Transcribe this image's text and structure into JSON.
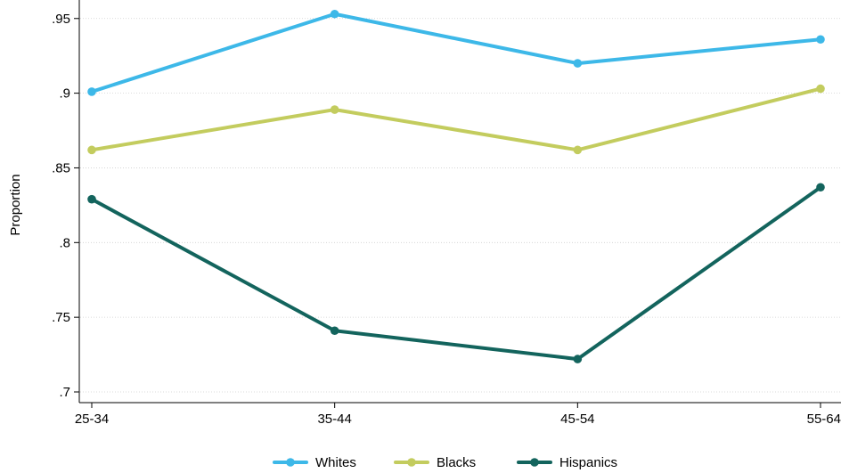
{
  "chart_data": {
    "type": "line",
    "categories": [
      "25-34",
      "35-44",
      "45-54",
      "55-64"
    ],
    "ylabel": "Proportion",
    "ylim": [
      0.7,
      0.96
    ],
    "yticks": [
      0.7,
      0.75,
      0.8,
      0.85,
      0.9,
      0.95
    ],
    "ytick_labels": [
      ".7",
      ".75",
      ".8",
      ".85",
      ".9",
      ".95"
    ],
    "grid": true,
    "legend_position": "bottom",
    "series": [
      {
        "name": "Whites",
        "color": "#3DB8E8",
        "values": [
          0.901,
          0.953,
          0.92,
          0.936
        ]
      },
      {
        "name": "Blacks",
        "color": "#C3CC5E",
        "values": [
          0.862,
          0.889,
          0.862,
          0.903
        ]
      },
      {
        "name": "Hispanics",
        "color": "#13645D",
        "values": [
          0.829,
          0.741,
          0.722,
          0.837
        ]
      }
    ]
  }
}
